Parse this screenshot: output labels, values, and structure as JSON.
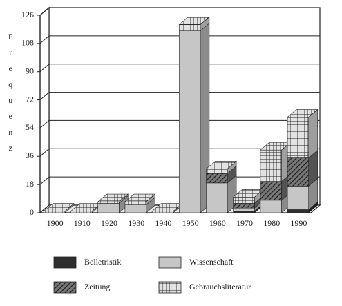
{
  "chart_data": {
    "type": "bar3d-stacked",
    "y_label": "Frequenz",
    "categories": [
      "1900",
      "1910",
      "1920",
      "1930",
      "1940",
      "1950",
      "1960",
      "1970",
      "1980",
      "1990"
    ],
    "series": [
      {
        "name": "Belletristik",
        "color": "#2e2e2e",
        "values": [
          0,
          0,
          0,
          0,
          0,
          0,
          0,
          1,
          0,
          2
        ]
      },
      {
        "name": "Wissenschaft",
        "color": "#c6c6c6",
        "values": [
          0,
          0,
          6,
          5,
          0,
          116,
          19,
          2,
          8,
          15
        ]
      },
      {
        "name": "Zeitung",
        "color": "#777777",
        "values": [
          0,
          0,
          0,
          0,
          0,
          0,
          6,
          3,
          12,
          18
        ]
      },
      {
        "name": "Gebrauchsliteratur",
        "color": "#e2e2e2",
        "values": [
          1,
          1,
          1,
          2,
          1,
          4,
          3,
          4,
          20,
          26
        ]
      }
    ],
    "ylim": [
      0,
      126
    ],
    "yticks": [
      0,
      18,
      36,
      54,
      72,
      90,
      108,
      126
    ],
    "grid": true
  }
}
